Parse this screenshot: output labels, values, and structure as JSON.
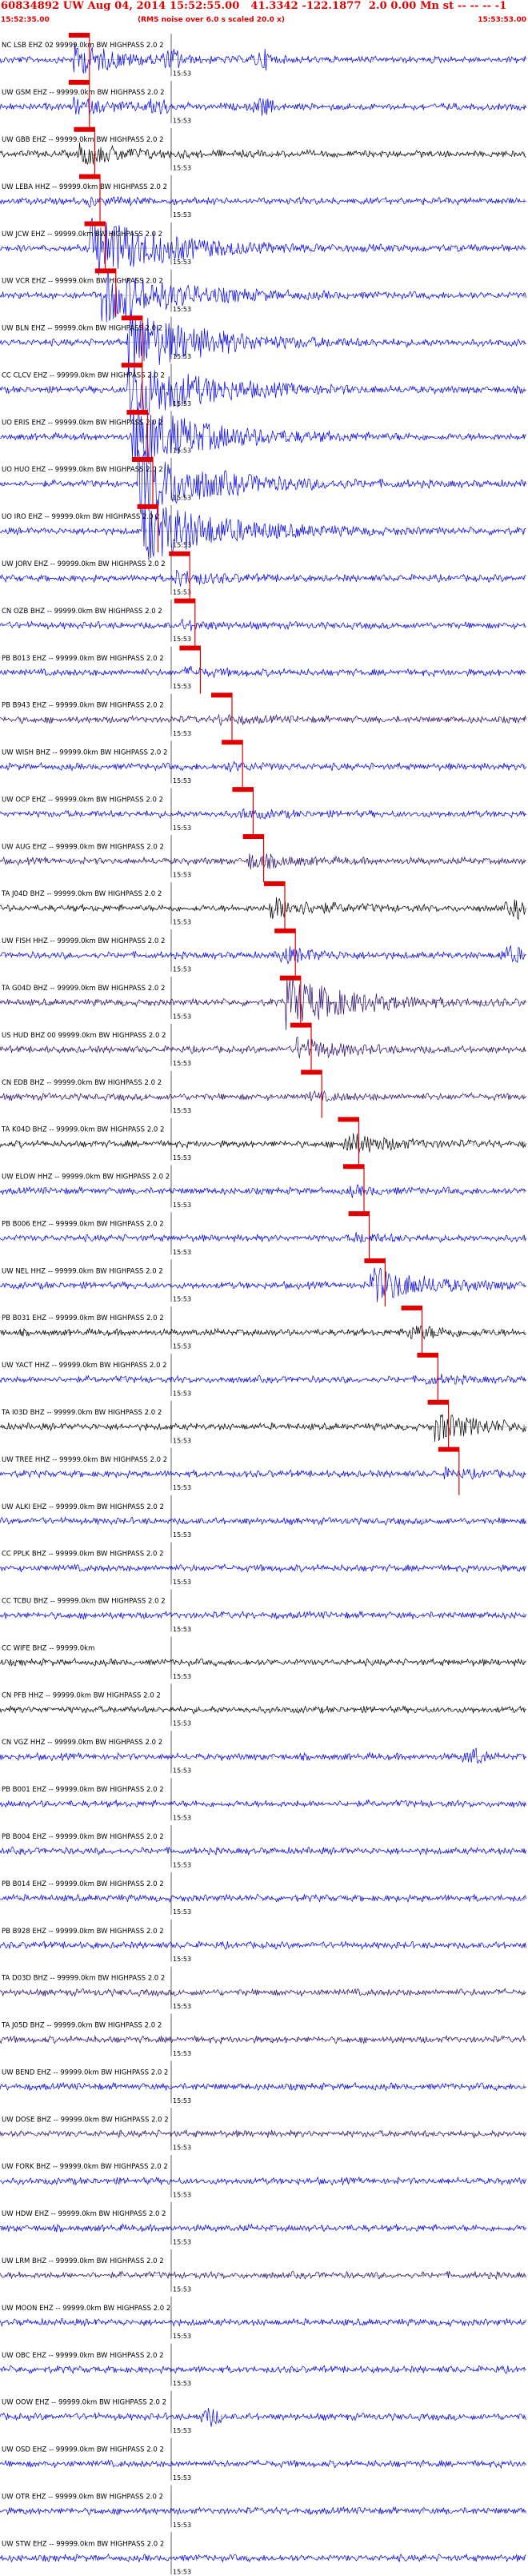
{
  "header": {
    "title": "60834892 UW Aug 04, 2014 15:52:55.00   41.3342 -122.1877  2.0 0.00 Mn st -- -- -- -1",
    "start_time": "15:52:35.00",
    "end_time": "15:53:53.00",
    "subtitle": "(RMS noise over 6.0 s scaled 20.0 x)"
  },
  "time_mark": "15:53",
  "colors": {
    "header": "#e00000",
    "pick": "#e00000",
    "trace_blue": "#0000ee",
    "trace_black": "#000000",
    "trace_purple": "#2a0a6e",
    "grid": "#555555"
  },
  "traces": [
    {
      "label": "NC LSB EHZ 02 99999.0km BW  HIGHPASS  2.0  2",
      "color": "blue",
      "event_amp": 4,
      "pick_frac": 0.13,
      "burst_frac": 0.14,
      "extra": [
        0.33,
        0.5
      ]
    },
    {
      "label": "UW GSM EHZ -- 99999.0km BW  HIGHPASS  2.0  2",
      "color": "blue",
      "event_amp": 2,
      "pick_frac": 0.13,
      "burst_frac": 0.14,
      "extra": [
        0.5,
        0.3
      ]
    },
    {
      "label": "UW GBB EHZ -- 99999.0km BW  HIGHPASS  2.0  2",
      "color": "black",
      "event_amp": 3,
      "pick_frac": 0.14,
      "burst_frac": 0.15,
      "extra": []
    },
    {
      "label": "UW LEBA HHZ -- 99999.0km BW  HIGHPASS  2.0  2",
      "color": "blue",
      "event_amp": 1,
      "pick_frac": 0.15,
      "burst_frac": 0.16,
      "extra": []
    },
    {
      "label": "UW JCW EHZ -- 99999.0km BW  HIGHPASS  2.0  2",
      "color": "blue",
      "event_amp": 9,
      "pick_frac": 0.16,
      "burst_frac": 0.17,
      "extra": []
    },
    {
      "label": "UW VCR EHZ -- 99999.0km BW  HIGHPASS  2.0  2",
      "color": "blue",
      "event_amp": 8,
      "pick_frac": 0.18,
      "burst_frac": 0.19,
      "extra": []
    },
    {
      "label": "UW BLN EHZ -- 99999.0km BW  HIGHPASS  2.0  2",
      "color": "blue",
      "event_amp": 9,
      "pick_frac": 0.23,
      "burst_frac": 0.24,
      "extra": []
    },
    {
      "label": "CC CLCV EHZ -- 99999.0km BW  HIGHPASS  2.0  2",
      "color": "blue",
      "event_amp": 9,
      "pick_frac": 0.23,
      "burst_frac": 0.24,
      "extra": []
    },
    {
      "label": "UO ERIS EHZ -- 99999.0km BW  HIGHPASS  2.0  2",
      "color": "blue",
      "event_amp": 9,
      "pick_frac": 0.24,
      "burst_frac": 0.25,
      "extra": []
    },
    {
      "label": "UO HUO EHZ -- 99999.0km BW  HIGHPASS  2.0  2",
      "color": "blue",
      "event_amp": 9,
      "pick_frac": 0.25,
      "burst_frac": 0.26,
      "extra": []
    },
    {
      "label": "UO IRO EHZ -- 99999.0km BW  HIGHPASS  2.0  2",
      "color": "blue",
      "event_amp": 9,
      "pick_frac": 0.26,
      "burst_frac": 0.27,
      "extra": []
    },
    {
      "label": "UW JORV EHZ -- 99999.0km BW  HIGHPASS  2.0  2",
      "color": "blue",
      "event_amp": 2,
      "pick_frac": 0.32,
      "burst_frac": 0.33,
      "extra": []
    },
    {
      "label": "CN OZB BHZ -- 99999.0km BW  HIGHPASS  2.0  2",
      "color": "blue",
      "event_amp": 1,
      "pick_frac": 0.33,
      "burst_frac": 0.34,
      "extra": []
    },
    {
      "label": "PB B013 EHZ -- 99999.0km BW  HIGHPASS  2.0  2",
      "color": "blue",
      "event_amp": 1,
      "pick_frac": 0.34,
      "burst_frac": 0.35,
      "extra": []
    },
    {
      "label": "PB B943 EHZ -- 99999.0km BW  HIGHPASS  2.0  2",
      "color": "purple",
      "event_amp": 1,
      "pick_frac": 0.4,
      "burst_frac": 0.41,
      "extra": []
    },
    {
      "label": "UW WISH BHZ -- 99999.0km BW  HIGHPASS  2.0  2",
      "color": "blue",
      "event_amp": 1,
      "pick_frac": 0.42,
      "burst_frac": 0.43,
      "extra": []
    },
    {
      "label": "UW OCP EHZ -- 99999.0km BW  HIGHPASS  2.0  2",
      "color": "blue",
      "event_amp": 1,
      "pick_frac": 0.44,
      "burst_frac": 0.45,
      "extra": []
    },
    {
      "label": "UW AUG EHZ -- 99999.0km BW  HIGHPASS  2.0  2",
      "color": "purple",
      "event_amp": 2,
      "pick_frac": 0.46,
      "burst_frac": 0.47,
      "extra": []
    },
    {
      "label": "TA J04D BHZ -- 99999.0km BW  HIGHPASS  2.0  2",
      "color": "black",
      "event_amp": 3,
      "pick_frac": 0.5,
      "burst_frac": 0.51,
      "extra": [
        0.98
      ]
    },
    {
      "label": "UW FISH HHZ -- 99999.0km BW  HIGHPASS  2.0  2",
      "color": "blue",
      "event_amp": 2,
      "pick_frac": 0.52,
      "burst_frac": 0.53,
      "extra": [
        0.97
      ]
    },
    {
      "label": "TA G04D BHZ -- 99999.0km BW  HIGHPASS  2.0  2",
      "color": "purple",
      "event_amp": 7,
      "pick_frac": 0.53,
      "burst_frac": 0.54,
      "extra": []
    },
    {
      "label": "US HUD BHZ 00 99999.0km BW  HIGHPASS  2.0  2",
      "color": "purple",
      "event_amp": 3,
      "pick_frac": 0.55,
      "burst_frac": 0.56,
      "extra": []
    },
    {
      "label": "CN EDB BHZ -- 99999.0km BW  HIGHPASS  2.0  2",
      "color": "purple",
      "event_amp": 1,
      "pick_frac": 0.57,
      "burst_frac": 0.58,
      "extra": []
    },
    {
      "label": "TA K04D BHZ -- 99999.0km BW  HIGHPASS  2.0  2",
      "color": "black",
      "event_amp": 3,
      "pick_frac": 0.64,
      "burst_frac": 0.65,
      "extra": []
    },
    {
      "label": "UW ELOW HHZ -- 99999.0km BW  HIGHPASS  2.0  2",
      "color": "blue",
      "event_amp": 1,
      "pick_frac": 0.65,
      "burst_frac": 0.66,
      "extra": []
    },
    {
      "label": "PB B006 EHZ -- 99999.0km BW  HIGHPASS  2.0  2",
      "color": "blue",
      "event_amp": 1,
      "pick_frac": 0.66,
      "burst_frac": 0.67,
      "extra": []
    },
    {
      "label": "UW NEL HHZ -- 99999.0km BW  HIGHPASS  2.0  2",
      "color": "blue",
      "event_amp": 5,
      "pick_frac": 0.69,
      "burst_frac": 0.7,
      "extra": []
    },
    {
      "label": "PB B031 EHZ -- 99999.0km BW  HIGHPASS  2.0  2",
      "color": "black",
      "event_amp": 2,
      "pick_frac": 0.76,
      "burst_frac": 0.77,
      "extra": []
    },
    {
      "label": "UW YACT HHZ -- 99999.0km BW  HIGHPASS  2.0  2",
      "color": "blue",
      "event_amp": 1,
      "pick_frac": 0.79,
      "burst_frac": 0.8,
      "extra": []
    },
    {
      "label": "TA I03D BHZ -- 99999.0km BW  HIGHPASS  2.0  2",
      "color": "black",
      "event_amp": 4,
      "pick_frac": 0.81,
      "burst_frac": 0.82,
      "extra": []
    },
    {
      "label": "UW TREE HHZ -- 99999.0km BW  HIGHPASS  2.0  2",
      "color": "blue",
      "event_amp": 1,
      "pick_frac": 0.83,
      "burst_frac": 0.84,
      "extra": []
    },
    {
      "label": "UW ALKI EHZ -- 99999.0km BW  HIGHPASS  2.0  2",
      "color": "blue",
      "event_amp": 0,
      "extra": []
    },
    {
      "label": "CC PPLK BHZ -- 99999.0km BW  HIGHPASS  2.0  2",
      "color": "blue",
      "event_amp": 0,
      "extra": []
    },
    {
      "label": "CC TCBU BHZ -- 99999.0km BW  HIGHPASS  2.0  2",
      "color": "blue",
      "event_amp": 0,
      "extra": []
    },
    {
      "label": "CC WIFE BHZ -- 99999.0km",
      "color": "black",
      "event_amp": 0,
      "extra": []
    },
    {
      "label": "CN PFB HHZ -- 99999.0km BW  HIGHPASS  2.0  2",
      "color": "black",
      "event_amp": 0,
      "extra": []
    },
    {
      "label": "CN VGZ HHZ -- 99999.0km BW  HIGHPASS  2.0  2",
      "color": "blue",
      "event_amp": 0,
      "extra": [
        0.9
      ]
    },
    {
      "label": "PB B001 EHZ -- 99999.0km BW  HIGHPASS  2.0  2",
      "color": "blue",
      "event_amp": 0,
      "extra": []
    },
    {
      "label": "PB B004 EHZ -- 99999.0km BW  HIGHPASS  2.0  2",
      "color": "blue",
      "event_amp": 0,
      "extra": []
    },
    {
      "label": "PB B014 EHZ -- 99999.0km BW  HIGHPASS  2.0  2",
      "color": "blue",
      "event_amp": 0,
      "extra": []
    },
    {
      "label": "PB B928 EHZ -- 99999.0km BW  HIGHPASS  2.0  2",
      "color": "blue",
      "event_amp": 0,
      "extra": []
    },
    {
      "label": "TA D03D BHZ -- 99999.0km BW  HIGHPASS  2.0  2",
      "color": "purple",
      "event_amp": 0,
      "extra": []
    },
    {
      "label": "TA J05D BHZ -- 99999.0km BW  HIGHPASS  2.0  2",
      "color": "purple",
      "event_amp": 0,
      "extra": []
    },
    {
      "label": "UW BEND EHZ -- 99999.0km BW  HIGHPASS  2.0  2",
      "color": "blue",
      "event_amp": 0,
      "extra": []
    },
    {
      "label": "UW DOSE BHZ -- 99999.0km BW  HIGHPASS  2.0  2",
      "color": "purple",
      "event_amp": 0,
      "extra": []
    },
    {
      "label": "UW FORK BHZ -- 99999.0km BW  HIGHPASS  2.0  2",
      "color": "blue",
      "event_amp": 0,
      "extra": []
    },
    {
      "label": "UW HDW EHZ -- 99999.0km BW  HIGHPASS  2.0  2",
      "color": "blue",
      "event_amp": 0,
      "extra": []
    },
    {
      "label": "UW LRM BHZ -- 99999.0km BW  HIGHPASS  2.0  2",
      "color": "purple",
      "event_amp": 0,
      "extra": []
    },
    {
      "label": "UW MOON EHZ -- 99999.0km BW  HIGHPASS  2.0  2",
      "color": "blue",
      "event_amp": 0,
      "extra": []
    },
    {
      "label": "UW OBC EHZ -- 99999.0km BW  HIGHPASS  2.0  2",
      "color": "blue",
      "event_amp": 0,
      "extra": []
    },
    {
      "label": "UW OOW EHZ -- 99999.0km BW  HIGHPASS  2.0  2",
      "color": "blue",
      "event_amp": 0,
      "extra": [
        0.4
      ]
    },
    {
      "label": "UW OSD EHZ -- 99999.0km BW  HIGHPASS  2.0  2",
      "color": "blue",
      "event_amp": 0,
      "extra": []
    },
    {
      "label": "UW OTR EHZ -- 99999.0km BW  HIGHPASS  2.0  2",
      "color": "blue",
      "event_amp": 0,
      "extra": []
    },
    {
      "label": "UW STW EHZ -- 99999.0km BW  HIGHPASS  2.0  2",
      "color": "blue",
      "event_amp": 0,
      "extra": []
    }
  ]
}
